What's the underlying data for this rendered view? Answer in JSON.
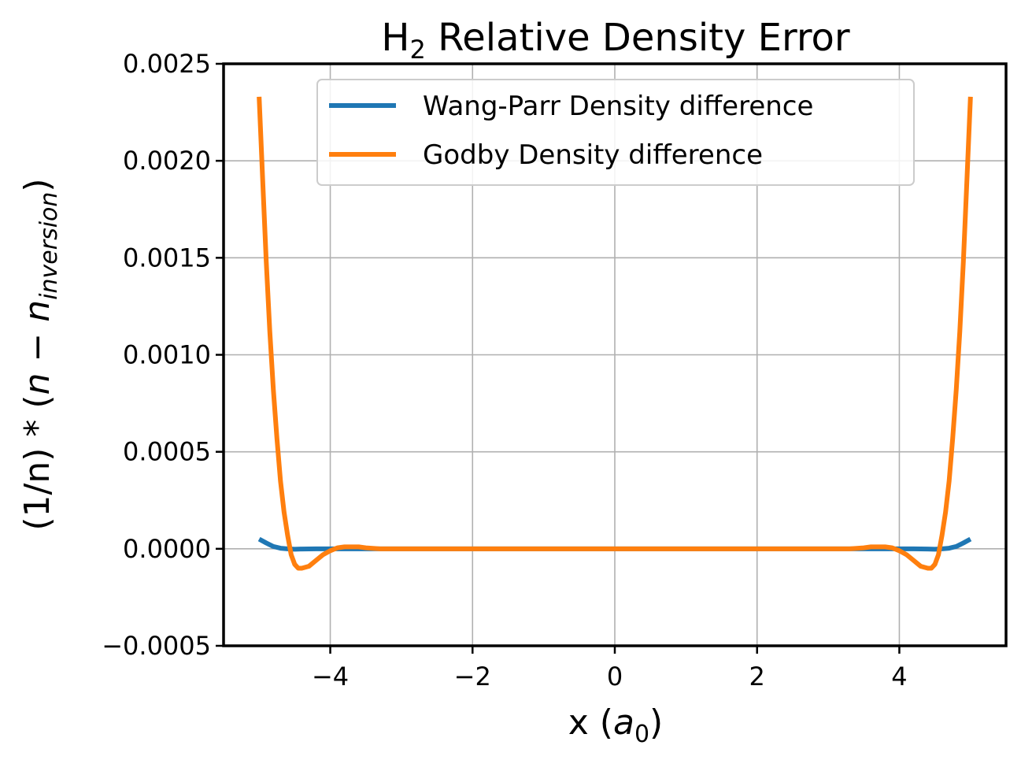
{
  "chart_data": {
    "type": "line",
    "title": {
      "main": "H",
      "sub": "2",
      "rest": " Relative Density Error"
    },
    "xlabel": {
      "prefix": "x (",
      "var": "a",
      "sub": "0",
      "suffix": ")"
    },
    "ylabel": {
      "prefix": "(1/n) * (",
      "var1": "n",
      "minus": " − ",
      "var2": "n",
      "sub": "inversion",
      "suffix": ")"
    },
    "xlim": [
      -5.5,
      5.5
    ],
    "ylim": [
      -0.0005,
      0.0025
    ],
    "xticks": [
      -4,
      -2,
      0,
      2,
      4
    ],
    "xtick_labels": [
      "−4",
      "−2",
      "0",
      "2",
      "4"
    ],
    "yticks": [
      -0.0005,
      0.0,
      0.0005,
      0.001,
      0.0015,
      0.002,
      0.0025
    ],
    "ytick_labels": [
      "−0.0005",
      "0.0000",
      "0.0005",
      "0.0010",
      "0.0015",
      "0.0020",
      "0.0025"
    ],
    "grid": true,
    "legend_position": "top-center",
    "series": [
      {
        "name": "Wang-Parr Density difference",
        "color": "#1f77b4",
        "x": [
          -5.0,
          -4.9,
          -4.8,
          -4.7,
          -4.6,
          -4.5,
          -4.4,
          -4.2,
          -4.0,
          -3.5,
          -3.0,
          -2.0,
          -1.0,
          0.0,
          1.0,
          2.0,
          3.0,
          3.5,
          4.0,
          4.2,
          4.4,
          4.5,
          4.6,
          4.7,
          4.8,
          4.9,
          5.0
        ],
        "values": [
          5e-05,
          3e-05,
          1.2e-05,
          3e-06,
          0.0,
          -2e-06,
          -1e-06,
          0.0,
          0.0,
          0.0,
          0.0,
          0.0,
          0.0,
          0.0,
          0.0,
          0.0,
          0.0,
          0.0,
          0.0,
          0.0,
          -1e-06,
          -2e-06,
          0.0,
          3e-06,
          1.2e-05,
          3e-05,
          5e-05
        ]
      },
      {
        "name": "Godby Density difference",
        "color": "#ff7f0e",
        "x": [
          -5.0,
          -4.95,
          -4.9,
          -4.85,
          -4.8,
          -4.75,
          -4.7,
          -4.65,
          -4.6,
          -4.55,
          -4.5,
          -4.45,
          -4.4,
          -4.3,
          -4.2,
          -4.1,
          -4.0,
          -3.9,
          -3.8,
          -3.7,
          -3.6,
          -3.5,
          -3.3,
          -3.0,
          -2.0,
          -1.0,
          0.0,
          1.0,
          2.0,
          3.0,
          3.3,
          3.5,
          3.6,
          3.7,
          3.8,
          3.9,
          4.0,
          4.1,
          4.2,
          4.3,
          4.4,
          4.45,
          4.5,
          4.55,
          4.6,
          4.65,
          4.7,
          4.75,
          4.8,
          4.85,
          4.9,
          4.95,
          5.0
        ],
        "values": [
          0.00233,
          0.0019,
          0.00148,
          0.00112,
          0.00082,
          0.00057,
          0.00035,
          0.00019,
          7e-05,
          -3e-05,
          -8e-05,
          -0.0001,
          -0.0001,
          -9e-05,
          -6e-05,
          -3e-05,
          -1e-05,
          5e-06,
          1e-05,
          1e-05,
          1e-05,
          5e-06,
          0.0,
          0.0,
          0.0,
          0.0,
          0.0,
          0.0,
          0.0,
          0.0,
          0.0,
          5e-06,
          1e-05,
          1e-05,
          1e-05,
          5e-06,
          -1e-05,
          -3e-05,
          -6e-05,
          -9e-05,
          -0.0001,
          -0.0001,
          -8e-05,
          -3e-05,
          7e-05,
          0.00019,
          0.00035,
          0.00057,
          0.00082,
          0.00112,
          0.00148,
          0.0019,
          0.00233
        ]
      }
    ]
  }
}
